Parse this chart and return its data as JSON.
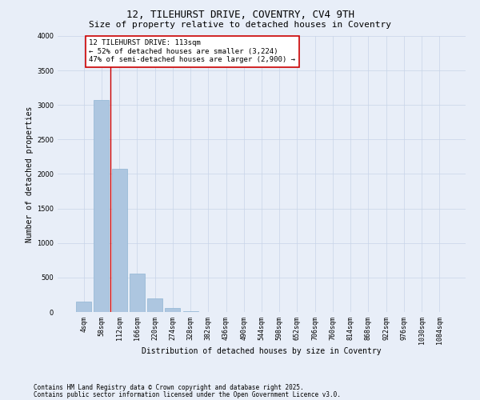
{
  "title": "12, TILEHURST DRIVE, COVENTRY, CV4 9TH",
  "subtitle": "Size of property relative to detached houses in Coventry",
  "xlabel": "Distribution of detached houses by size in Coventry",
  "ylabel": "Number of detached properties",
  "bar_color": "#adc6e0",
  "bar_edge_color": "#90b4d4",
  "background_color": "#e8eef8",
  "plot_bg_color": "#e8eef8",
  "categories": [
    "4sqm",
    "58sqm",
    "112sqm",
    "166sqm",
    "220sqm",
    "274sqm",
    "328sqm",
    "382sqm",
    "436sqm",
    "490sqm",
    "544sqm",
    "598sqm",
    "652sqm",
    "706sqm",
    "760sqm",
    "814sqm",
    "868sqm",
    "922sqm",
    "976sqm",
    "1030sqm",
    "1084sqm"
  ],
  "values": [
    150,
    3070,
    2070,
    560,
    200,
    55,
    10,
    0,
    0,
    0,
    0,
    0,
    0,
    0,
    0,
    0,
    0,
    0,
    0,
    0,
    0
  ],
  "ylim": [
    0,
    4000
  ],
  "yticks": [
    0,
    500,
    1000,
    1500,
    2000,
    2500,
    3000,
    3500,
    4000
  ],
  "property_line_x": 1.5,
  "annotation_title": "12 TILEHURST DRIVE: 113sqm",
  "annotation_line1": "← 52% of detached houses are smaller (3,224)",
  "annotation_line2": "47% of semi-detached houses are larger (2,900) →",
  "annotation_box_color": "#ffffff",
  "annotation_border_color": "#cc0000",
  "vline_color": "#cc0000",
  "footer1": "Contains HM Land Registry data © Crown copyright and database right 2025.",
  "footer2": "Contains public sector information licensed under the Open Government Licence v3.0.",
  "grid_color": "#c8d4e8",
  "title_fontsize": 9,
  "subtitle_fontsize": 8,
  "axis_label_fontsize": 7,
  "tick_fontsize": 6,
  "annotation_fontsize": 6.5,
  "footer_fontsize": 5.5
}
